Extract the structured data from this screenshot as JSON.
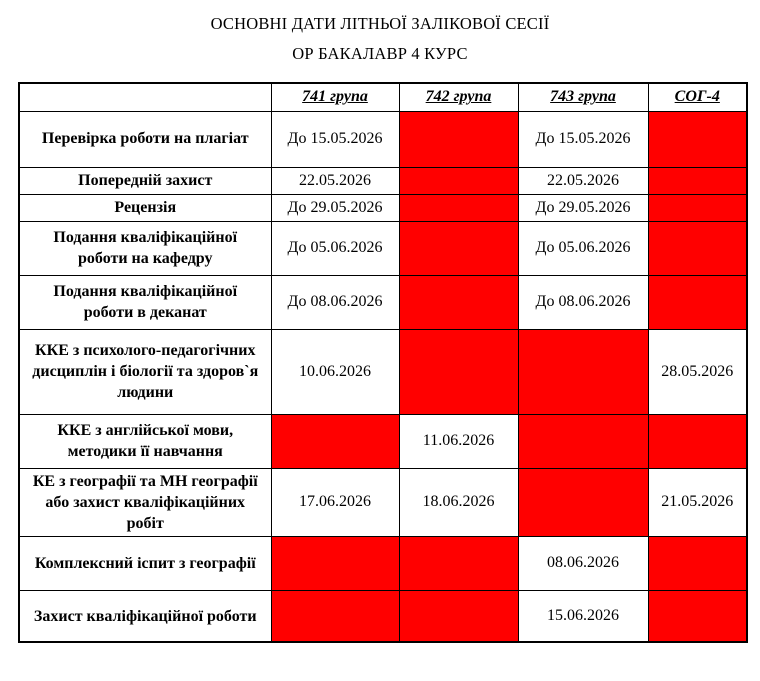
{
  "title": {
    "line1": "ОСНОВНІ ДАТИ ЛІТНЬОЇ ЗАЛІКОВОЇ СЕСІЇ",
    "line2": "ОР БАКАЛАВР 4 КУРС"
  },
  "colors": {
    "blocked": "#FF0000",
    "border": "#000000",
    "background": "#FFFFFF"
  },
  "table": {
    "columns": [
      "",
      "741 група",
      "742 група",
      "743 група",
      "СОГ-4"
    ],
    "rows": [
      {
        "label": "Перевірка роботи на плагіат",
        "cells": [
          {
            "text": "До 15.05.2026",
            "red": false
          },
          {
            "text": "",
            "red": true
          },
          {
            "text": "До 15.05.2026",
            "red": false
          },
          {
            "text": "",
            "red": true
          }
        ]
      },
      {
        "label": "Попередній захист",
        "cells": [
          {
            "text": "22.05.2026",
            "red": false
          },
          {
            "text": "",
            "red": true
          },
          {
            "text": "22.05.2026",
            "red": false
          },
          {
            "text": "",
            "red": true
          }
        ]
      },
      {
        "label": "Рецензія",
        "cells": [
          {
            "text": "До 29.05.2026",
            "red": false
          },
          {
            "text": "",
            "red": true
          },
          {
            "text": "До 29.05.2026",
            "red": false
          },
          {
            "text": "",
            "red": true
          }
        ]
      },
      {
        "label": "Подання кваліфікаційної роботи на кафедру",
        "cells": [
          {
            "text": "До 05.06.2026",
            "red": false
          },
          {
            "text": "",
            "red": true
          },
          {
            "text": "До 05.06.2026",
            "red": false
          },
          {
            "text": "",
            "red": true
          }
        ]
      },
      {
        "label": "Подання кваліфікаційної роботи в деканат",
        "cells": [
          {
            "text": "До 08.06.2026",
            "red": false
          },
          {
            "text": "",
            "red": true
          },
          {
            "text": "До 08.06.2026",
            "red": false
          },
          {
            "text": "",
            "red": true
          }
        ]
      },
      {
        "label": "ККЕ з психолого-педагогічних дисциплін і біології та здоров`я людини",
        "cells": [
          {
            "text": "10.06.2026",
            "red": false
          },
          {
            "text": "",
            "red": true
          },
          {
            "text": "",
            "red": true
          },
          {
            "text": "28.05.2026",
            "red": false
          }
        ]
      },
      {
        "label": "ККЕ з англійської мови, методики її навчання",
        "cells": [
          {
            "text": "",
            "red": true
          },
          {
            "text": "11.06.2026",
            "red": false
          },
          {
            "text": "",
            "red": true
          },
          {
            "text": "",
            "red": true
          }
        ]
      },
      {
        "label": "КЕ з географії та МН географії або захист кваліфікаційних робіт",
        "cells": [
          {
            "text": "17.06.2026",
            "red": false
          },
          {
            "text": "18.06.2026",
            "red": false
          },
          {
            "text": "",
            "red": true
          },
          {
            "text": "21.05.2026",
            "red": false
          }
        ]
      },
      {
        "label": "Комплексний іспит з географії",
        "cells": [
          {
            "text": "",
            "red": true
          },
          {
            "text": "",
            "red": true
          },
          {
            "text": "08.06.2026",
            "red": false
          },
          {
            "text": "",
            "red": true
          }
        ]
      },
      {
        "label": "Захист кваліфікаційної роботи",
        "cells": [
          {
            "text": "",
            "red": true
          },
          {
            "text": "",
            "red": true
          },
          {
            "text": "15.06.2026",
            "red": false
          },
          {
            "text": "",
            "red": true
          }
        ]
      }
    ]
  }
}
